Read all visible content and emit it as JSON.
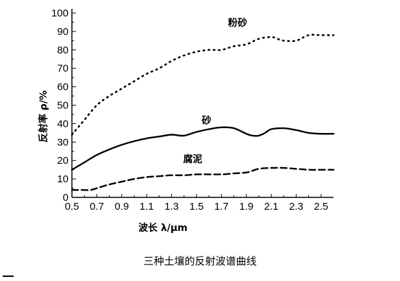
{
  "chart_data": {
    "type": "line",
    "title": "",
    "caption": "三种土壤的反射波谱曲线",
    "xlabel": "波长 λ/μm",
    "ylabel": "反射率 ρ/%",
    "xlim": [
      0.5,
      2.6
    ],
    "ylim": [
      0,
      100
    ],
    "xticks": [
      "0.5",
      "0.7",
      "0.9",
      "1.1",
      "1.3",
      "1.5",
      "1.7",
      "1.9",
      "2.1",
      "2.3",
      "2.5"
    ],
    "yticks": [
      "0",
      "10",
      "20",
      "30",
      "40",
      "50",
      "60",
      "70",
      "80",
      "90",
      "100"
    ],
    "grid": false,
    "legend": "none",
    "series": [
      {
        "name": "粉砂",
        "style": "dotted",
        "color": "#000000",
        "x": [
          0.5,
          0.55,
          0.6,
          0.7,
          0.8,
          0.9,
          1.0,
          1.1,
          1.2,
          1.3,
          1.4,
          1.5,
          1.6,
          1.7,
          1.8,
          1.9,
          2.0,
          2.1,
          2.15,
          2.2,
          2.3,
          2.4,
          2.5,
          2.6
        ],
        "values": [
          34,
          38,
          42,
          50,
          55,
          59,
          63,
          67,
          70,
          74,
          77,
          79,
          80,
          80,
          82,
          83,
          86,
          87,
          86,
          85,
          85,
          88,
          88,
          88
        ]
      },
      {
        "name": "砂",
        "style": "solid",
        "color": "#000000",
        "x": [
          0.5,
          0.6,
          0.7,
          0.8,
          0.9,
          1.0,
          1.1,
          1.2,
          1.3,
          1.4,
          1.5,
          1.6,
          1.7,
          1.8,
          1.9,
          1.95,
          2.0,
          2.05,
          2.1,
          2.2,
          2.3,
          2.4,
          2.5,
          2.6
        ],
        "values": [
          15,
          19,
          23,
          26,
          28.5,
          30.5,
          32,
          33,
          34,
          33.5,
          35.5,
          37,
          38,
          37.5,
          34.5,
          33.5,
          33.5,
          35,
          37,
          37.5,
          36.5,
          35,
          34.5,
          34.5
        ]
      },
      {
        "name": "腐泥",
        "style": "dashed",
        "color": "#000000",
        "x": [
          0.5,
          0.55,
          0.6,
          0.65,
          0.7,
          0.8,
          0.9,
          1.0,
          1.1,
          1.2,
          1.3,
          1.4,
          1.5,
          1.6,
          1.7,
          1.8,
          1.9,
          1.95,
          2.0,
          2.1,
          2.2,
          2.3,
          2.4,
          2.5,
          2.6
        ],
        "values": [
          4,
          4,
          4,
          4,
          5,
          7,
          8.5,
          10,
          11,
          11.5,
          12,
          12,
          12.5,
          12.5,
          12.5,
          13,
          13.5,
          14.5,
          15.5,
          16,
          16,
          15.5,
          15,
          15,
          15
        ]
      }
    ],
    "annotations": [
      {
        "text": "粉砂",
        "x": 1.83,
        "y": 93
      },
      {
        "text": "砂",
        "x": 1.58,
        "y": 40
      },
      {
        "text": "腐泥",
        "x": 1.47,
        "y": 19
      }
    ]
  }
}
